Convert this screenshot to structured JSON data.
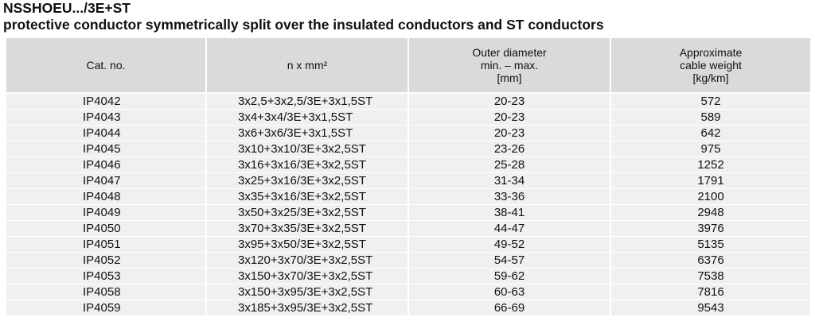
{
  "header": {
    "title": "NSSHOEU.../3E+ST",
    "subtitle": "protective conductor symmetrically split over the insulated conductors and ST conductors"
  },
  "table": {
    "columns": [
      [
        "Cat. no."
      ],
      [
        "n x mm²"
      ],
      [
        "Outer diameter",
        "min. – max.",
        "[mm]"
      ],
      [
        "Approximate",
        "cable weight",
        "[kg/km]"
      ]
    ],
    "rows": [
      [
        "IP4042",
        "3x2,5+3x2,5/3E+3x1,5ST",
        "20-23",
        "572"
      ],
      [
        "IP4043",
        "3x4+3x4/3E+3x1,5ST",
        "20-23",
        "589"
      ],
      [
        "IP4044",
        "3x6+3x6/3E+3x1,5ST",
        "20-23",
        "642"
      ],
      [
        "IP4045",
        "3x10+3x10/3E+3x2,5ST",
        "23-26",
        "975"
      ],
      [
        "IP4046",
        "3x16+3x16/3E+3x2,5ST",
        "25-28",
        "1252"
      ],
      [
        "IP4047",
        "3x25+3x16/3E+3x2,5ST",
        "31-34",
        "1791"
      ],
      [
        "IP4048",
        "3x35+3x16/3E+3x2,5ST",
        "33-36",
        "2100"
      ],
      [
        "IP4049",
        "3x50+3x25/3E+3x2,5ST",
        "38-41",
        "2948"
      ],
      [
        "IP4050",
        "3x70+3x35/3E+3x2,5ST",
        "44-47",
        "3976"
      ],
      [
        "IP4051",
        "3x95+3x50/3E+3x2,5ST",
        "49-52",
        "5135"
      ],
      [
        "IP4052",
        "3x120+3x70/3E+3x2,5ST",
        "54-57",
        "6376"
      ],
      [
        "IP4053",
        "3x150+3x70/3E+3x2,5ST",
        "59-62",
        "7538"
      ],
      [
        "IP4058",
        "3x150+3x95/3E+3x2,5ST",
        "60-63",
        "7816"
      ],
      [
        "IP4059",
        "3x185+3x95/3E+3x2,5ST",
        "66-69",
        "9543"
      ]
    ]
  }
}
